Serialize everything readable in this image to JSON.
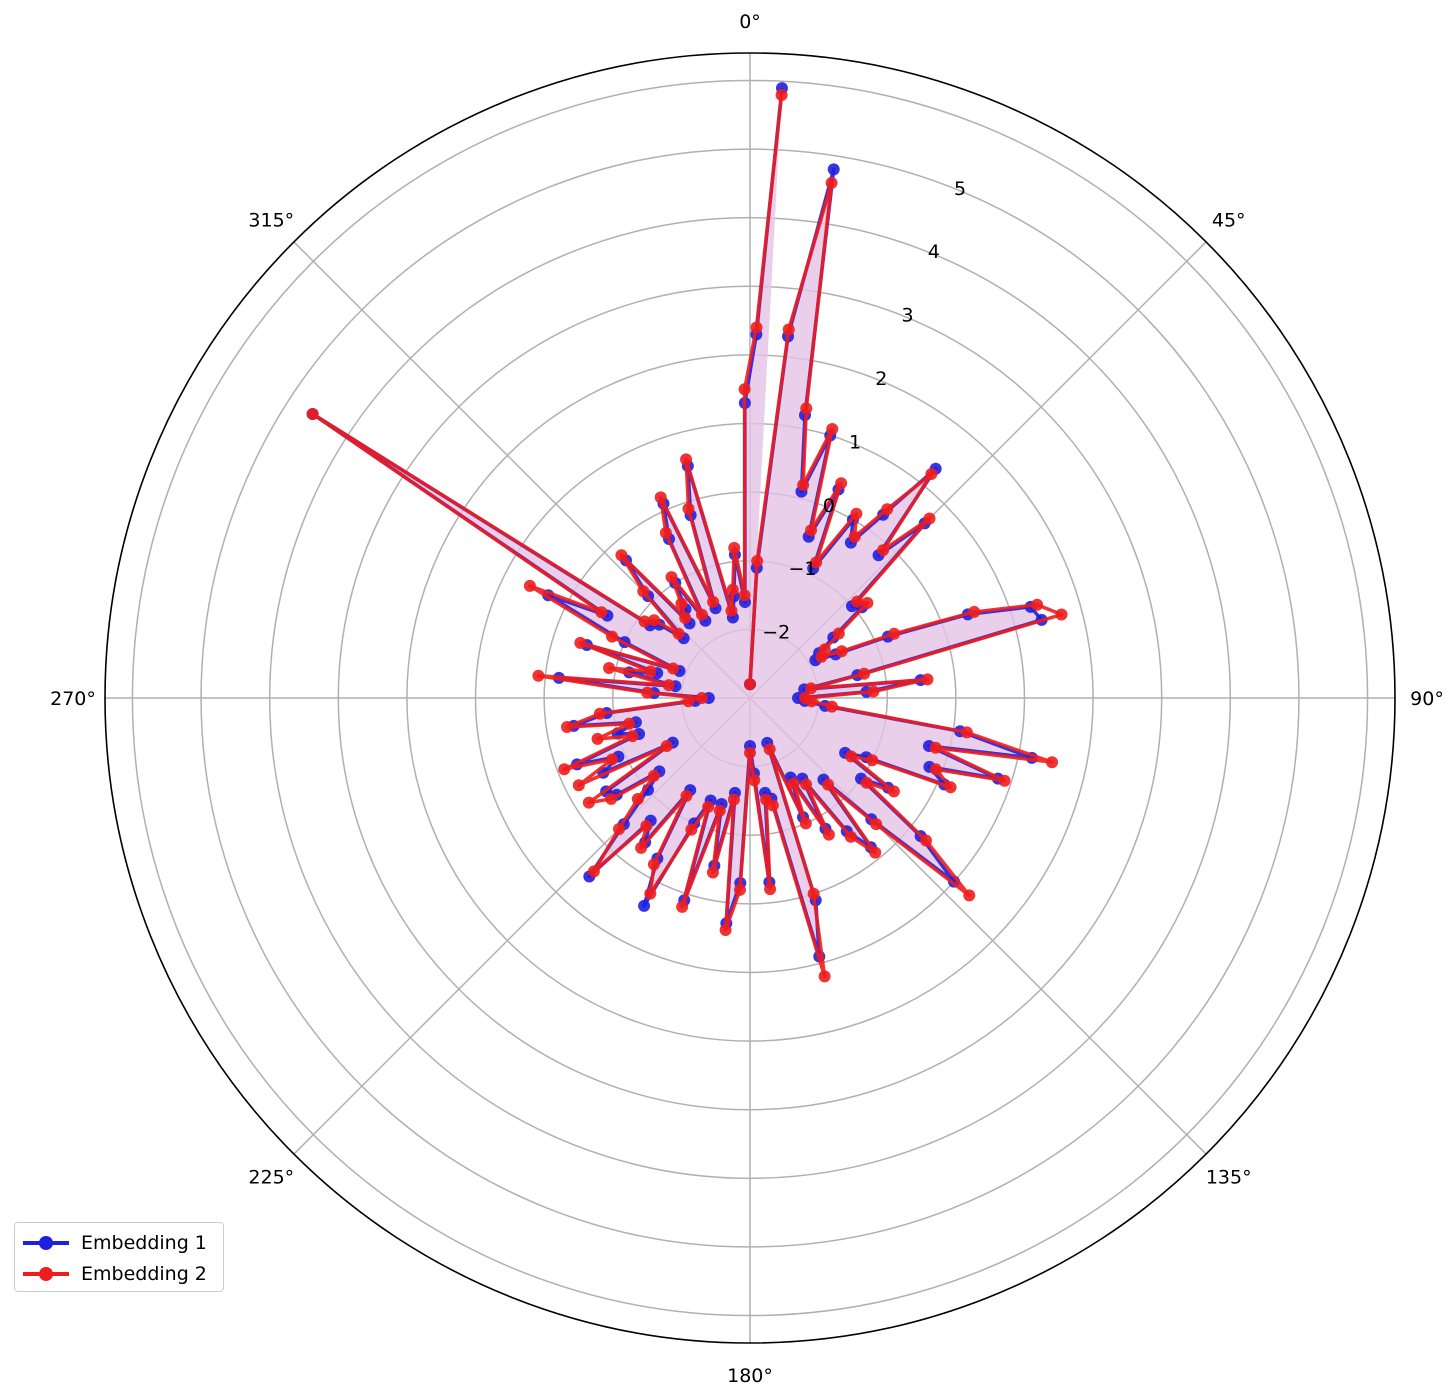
{
  "chart_data": {
    "type": "polar",
    "theta_direction": "clockwise",
    "theta_zero_location": "top",
    "angle_tick_labels": [
      "0°",
      "45°",
      "90°",
      "135°",
      "180°",
      "225°",
      "270°",
      "315°"
    ],
    "radial_range": [
      -3,
      6.4
    ],
    "radial_tick_labels": [
      "−2",
      "−1",
      "0",
      "1",
      "2",
      "3",
      "4",
      "5"
    ],
    "radial_ticks": [
      -2,
      -1,
      0,
      1,
      2,
      3,
      4,
      5
    ],
    "grid": true,
    "legend_position": "lower-left",
    "series": [
      {
        "name": "Embedding 1",
        "color": "#1f1fe0",
        "points": [
          [
            0,
            -2.8
          ],
          [
            3,
            -1.1
          ],
          [
            6,
            2.3
          ],
          [
            9,
            4.8
          ],
          [
            11,
            1.2
          ],
          [
            14,
            0.1
          ],
          [
            17,
            1.0
          ],
          [
            20,
            -0.5
          ],
          [
            23,
            0.3
          ],
          [
            26,
            -0.9
          ],
          [
            30,
            0.0
          ],
          [
            33,
            -0.3
          ],
          [
            36,
            0.3
          ],
          [
            39,
            1.3
          ],
          [
            42,
            -0.2
          ],
          [
            45,
            0.6
          ],
          [
            48,
            -1.0
          ],
          [
            51,
            -0.9
          ],
          [
            54,
            -1.5
          ],
          [
            57,
            -1.8
          ],
          [
            60,
            -1.9
          ],
          [
            63,
            -1.6
          ],
          [
            66,
            -0.8
          ],
          [
            69,
            0.4
          ],
          [
            72,
            1.3
          ],
          [
            75,
            1.4
          ],
          [
            78,
            -1.4
          ],
          [
            81,
            -2.2
          ],
          [
            84,
            -0.5
          ],
          [
            87,
            -1.3
          ],
          [
            90,
            -2.3
          ],
          [
            93,
            -2.2
          ],
          [
            96,
            -1.9
          ],
          [
            99,
            0.1
          ],
          [
            102,
            1.2
          ],
          [
            105,
            -0.3
          ],
          [
            108,
            0.8
          ],
          [
            111,
            -0.2
          ],
          [
            114,
            0.1
          ],
          [
            117,
            -1.1
          ],
          [
            120,
            -1.4
          ],
          [
            123,
            -0.6
          ],
          [
            126,
            -1.0
          ],
          [
            129,
            0.2
          ],
          [
            132,
            1.0
          ],
          [
            135,
            -0.5
          ],
          [
            138,
            -1.4
          ],
          [
            141,
            -0.2
          ],
          [
            144,
            -0.6
          ],
          [
            147,
            -1.6
          ],
          [
            150,
            -0.8
          ],
          [
            153,
            -1.7
          ],
          [
            156,
            -1.1
          ],
          [
            159,
            -2.3
          ],
          [
            162,
            0.1
          ],
          [
            165,
            0.9
          ],
          [
            168,
            -1.5
          ],
          [
            171,
            -1.6
          ],
          [
            174,
            -0.3
          ],
          [
            177,
            -1.9
          ],
          [
            180,
            -2.3
          ],
          [
            183,
            -0.3
          ],
          [
            186,
            0.3
          ],
          [
            189,
            -1.6
          ],
          [
            192,
            -0.5
          ],
          [
            195,
            -1.4
          ],
          [
            198,
            0.1
          ],
          [
            201,
            -1.4
          ],
          [
            204,
            -1.0
          ],
          [
            207,
            0.4
          ],
          [
            210,
            -0.3
          ],
          [
            213,
            -1.4
          ],
          [
            216,
            -0.4
          ],
          [
            219,
            -0.7
          ],
          [
            222,
            0.5
          ],
          [
            225,
            -0.4
          ],
          [
            228,
            -1.0
          ],
          [
            231,
            -1.3
          ],
          [
            234,
            -0.6
          ],
          [
            237,
            -0.5
          ],
          [
            240,
            -1.7
          ],
          [
            243,
            -0.6
          ],
          [
            246,
            -0.9
          ],
          [
            249,
            -0.3
          ],
          [
            252,
            -1.3
          ],
          [
            255,
            -1.0
          ],
          [
            258,
            -1.3
          ],
          [
            261,
            -0.4
          ],
          [
            264,
            -0.9
          ],
          [
            267,
            -2.2
          ],
          [
            270,
            -2.4
          ],
          [
            273,
            -1.6
          ],
          [
            276,
            -0.2
          ],
          [
            279,
            -1.9
          ],
          [
            282,
            -1.2
          ],
          [
            285,
            -1.6
          ],
          [
            288,
            -0.5
          ],
          [
            291,
            -1.9
          ],
          [
            294,
            -1.0
          ],
          [
            297,
            0.3
          ],
          [
            300,
            -0.6
          ],
          [
            303,
            4.6
          ],
          [
            306,
            -1.2
          ],
          [
            309,
            -1.3
          ],
          [
            312,
            -1.7
          ],
          [
            315,
            -0.9
          ],
          [
            318,
            -0.3
          ],
          [
            321,
            -1.6
          ],
          [
            324,
            -1.4
          ],
          [
            327,
            -1.0
          ],
          [
            330,
            -1.7
          ],
          [
            333,
            -0.4
          ],
          [
            336,
            0.1
          ],
          [
            339,
            -1.6
          ],
          [
            342,
            -0.2
          ],
          [
            345,
            0.5
          ],
          [
            348,
            -1.8
          ],
          [
            351,
            -1.5
          ],
          [
            354,
            -0.9
          ],
          [
            357,
            -1.6
          ],
          [
            359,
            1.3
          ],
          [
            1.0,
            2.3
          ],
          [
            3.0,
            5.9
          ]
        ]
      },
      {
        "name": "Embedding 2",
        "color": "#ee1d1d",
        "points": [
          [
            0,
            -2.8
          ],
          [
            3,
            -1.0
          ],
          [
            6,
            2.4
          ],
          [
            9,
            4.6
          ],
          [
            11,
            1.3
          ],
          [
            14,
            0.2
          ],
          [
            17,
            1.1
          ],
          [
            20,
            -0.4
          ],
          [
            23,
            0.4
          ],
          [
            26,
            -0.8
          ],
          [
            30,
            0.1
          ],
          [
            33,
            -0.2
          ],
          [
            36,
            0.4
          ],
          [
            39,
            1.2
          ],
          [
            42,
            -0.1
          ],
          [
            45,
            0.7
          ],
          [
            48,
            -0.9
          ],
          [
            51,
            -0.8
          ],
          [
            54,
            -1.4
          ],
          [
            57,
            -1.7
          ],
          [
            60,
            -1.8
          ],
          [
            63,
            -1.5
          ],
          [
            66,
            -0.7
          ],
          [
            69,
            0.5
          ],
          [
            72,
            1.4
          ],
          [
            75,
            1.7
          ],
          [
            78,
            -1.3
          ],
          [
            81,
            -2.1
          ],
          [
            84,
            -0.4
          ],
          [
            87,
            -1.2
          ],
          [
            90,
            -2.2
          ],
          [
            93,
            -2.1
          ],
          [
            96,
            -1.8
          ],
          [
            99,
            0.2
          ],
          [
            102,
            1.5
          ],
          [
            105,
            -0.2
          ],
          [
            108,
            0.9
          ],
          [
            111,
            -0.1
          ],
          [
            114,
            0.2
          ],
          [
            117,
            -1.0
          ],
          [
            120,
            -1.3
          ],
          [
            123,
            -0.5
          ],
          [
            126,
            -0.9
          ],
          [
            129,
            0.3
          ],
          [
            132,
            1.3
          ],
          [
            135,
            -0.4
          ],
          [
            138,
            -1.3
          ],
          [
            141,
            -0.1
          ],
          [
            144,
            -0.5
          ],
          [
            147,
            -1.5
          ],
          [
            150,
            -0.7
          ],
          [
            153,
            -1.6
          ],
          [
            156,
            -1.0
          ],
          [
            159,
            -2.2
          ],
          [
            162,
            0.0
          ],
          [
            165,
            1.2
          ],
          [
            168,
            -1.4
          ],
          [
            171,
            -1.5
          ],
          [
            174,
            -0.2
          ],
          [
            177,
            -1.8
          ],
          [
            180,
            -2.2
          ],
          [
            183,
            -0.2
          ],
          [
            186,
            0.4
          ],
          [
            189,
            -1.5
          ],
          [
            192,
            -0.4
          ],
          [
            195,
            -1.3
          ],
          [
            198,
            0.2
          ],
          [
            201,
            -1.3
          ],
          [
            204,
            -0.9
          ],
          [
            207,
            0.2
          ],
          [
            210,
            -0.2
          ],
          [
            213,
            -1.3
          ],
          [
            216,
            -0.3
          ],
          [
            219,
            -0.6
          ],
          [
            222,
            0.4
          ],
          [
            225,
            -0.3
          ],
          [
            228,
            -0.8
          ],
          [
            231,
            -1.2
          ],
          [
            234,
            -0.5
          ],
          [
            237,
            -0.2
          ],
          [
            240,
            -1.6
          ],
          [
            243,
            -0.2
          ],
          [
            246,
            -0.8
          ],
          [
            249,
            -0.1
          ],
          [
            252,
            -1.2
          ],
          [
            255,
            -0.7
          ],
          [
            258,
            -1.2
          ],
          [
            261,
            -0.3
          ],
          [
            264,
            -0.8
          ],
          [
            267,
            -2.1
          ],
          [
            270,
            -2.3
          ],
          [
            273,
            -1.5
          ],
          [
            276,
            0.1
          ],
          [
            279,
            -1.8
          ],
          [
            282,
            -0.9
          ],
          [
            285,
            -1.5
          ],
          [
            288,
            -0.4
          ],
          [
            291,
            -1.8
          ],
          [
            294,
            -0.8
          ],
          [
            297,
            0.6
          ],
          [
            300,
            -0.5
          ],
          [
            303,
            4.6
          ],
          [
            306,
            -1.1
          ],
          [
            309,
            -1.2
          ],
          [
            312,
            -1.6
          ],
          [
            315,
            -0.8
          ],
          [
            318,
            -0.2
          ],
          [
            321,
            -1.5
          ],
          [
            324,
            -1.3
          ],
          [
            327,
            -0.9
          ],
          [
            330,
            -1.6
          ],
          [
            333,
            -0.3
          ],
          [
            336,
            0.2
          ],
          [
            339,
            -1.5
          ],
          [
            342,
            -0.1
          ],
          [
            345,
            0.6
          ],
          [
            348,
            -1.7
          ],
          [
            351,
            -1.4
          ],
          [
            354,
            -0.8
          ],
          [
            357,
            -1.5
          ],
          [
            359,
            1.5
          ],
          [
            1.0,
            2.4
          ],
          [
            3.0,
            5.8
          ]
        ]
      }
    ],
    "fill_color": "#e3c3e3"
  },
  "legend": {
    "items": [
      {
        "label": "Embedding 1",
        "color": "#1f1fe0"
      },
      {
        "label": "Embedding 2",
        "color": "#ee1d1d"
      }
    ]
  }
}
